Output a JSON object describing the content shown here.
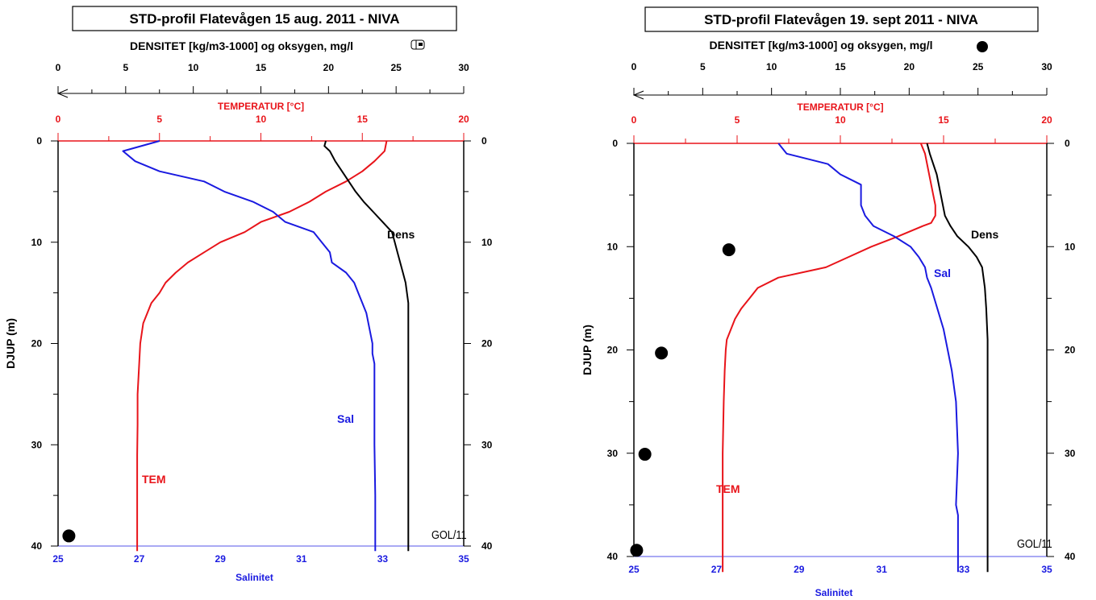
{
  "chart_data": [
    {
      "type": "line",
      "title": "STD-profil Flatevågen 15 aug. 2011 - NIVA",
      "ylabel": "DJUP (m)",
      "ylim": [
        0,
        40
      ],
      "y_ticks": [
        "0",
        "10",
        "20",
        "30",
        "40"
      ],
      "axes": {
        "density_oxygen": {
          "label": "DENSITET [kg/m3-1000] og oksygen, mg/l",
          "range": [
            0,
            30
          ],
          "ticks": [
            "0",
            "5",
            "10",
            "15",
            "20",
            "25",
            "30"
          ]
        },
        "temperature": {
          "label": "TEMPERATUR [°C]",
          "range": [
            0,
            20
          ],
          "ticks": [
            "0",
            "5",
            "10",
            "15",
            "20"
          ]
        },
        "salinity": {
          "label": "Salinitet",
          "range": [
            25,
            35
          ],
          "ticks": [
            "25",
            "27",
            "29",
            "31",
            "33",
            "35"
          ]
        }
      },
      "legend_symbol": "mailbox-icon",
      "series": [
        {
          "name": "TEM",
          "axis": "temperature",
          "color": "#e8141a",
          "x": [
            16.2,
            16.1,
            15.6,
            15.0,
            14.2,
            13.2,
            12.4,
            11.4,
            10.0,
            9.2,
            8.0,
            7.2,
            6.4,
            5.8,
            5.3,
            5.0,
            4.6,
            4.2,
            4.05,
            4.0,
            3.92,
            3.92,
            3.9,
            3.9,
            3.9
          ],
          "y": [
            0,
            1,
            2,
            3,
            4,
            5,
            6,
            7,
            8,
            9,
            10,
            11,
            12,
            13,
            14,
            15,
            16,
            18,
            20,
            22,
            25,
            28,
            31,
            35,
            40.5
          ]
        },
        {
          "name": "Sal",
          "axis": "salinity",
          "color": "#1a1ae0",
          "x": [
            27.5,
            26.6,
            26.9,
            27.5,
            28.6,
            29.1,
            29.8,
            30.3,
            30.6,
            31.3,
            31.5,
            31.7,
            31.75,
            32.1,
            32.3,
            32.4,
            32.5,
            32.6,
            32.65,
            32.7,
            32.75,
            32.75,
            32.8,
            32.8,
            32.8,
            32.82,
            32.82
          ],
          "y": [
            0,
            1,
            2,
            3,
            4,
            5,
            6,
            7,
            8,
            9,
            10,
            11,
            12,
            13,
            14,
            15,
            16,
            17,
            18,
            19,
            20,
            21,
            22,
            25,
            30,
            35,
            40.5
          ]
        },
        {
          "name": "Dens",
          "axis": "density_oxygen",
          "color": "#000000",
          "x": [
            19.8,
            19.7,
            20.1,
            20.5,
            21.0,
            21.5,
            22.0,
            22.6,
            23.3,
            24.0,
            24.7,
            24.9,
            25.1,
            25.3,
            25.5,
            25.7,
            25.8,
            25.9,
            25.9,
            25.9,
            25.9,
            25.9
          ],
          "y": [
            0,
            0.5,
            1,
            2,
            3,
            4,
            5,
            6,
            7,
            8,
            9,
            10,
            11,
            12,
            13,
            14,
            15,
            16,
            18,
            25,
            35,
            40.5
          ]
        },
        {
          "name": "Oksygen",
          "axis": "density_oxygen",
          "marker": "circle",
          "color": "#000000",
          "x": [
            0.8
          ],
          "y": [
            39
          ]
        }
      ],
      "annotations": [
        "Dens",
        "Sal",
        "TEM",
        "GOL/11"
      ]
    },
    {
      "type": "line",
      "title": "STD-profil Flatevågen 19. sept 2011 - NIVA",
      "ylabel": "DJUP (m)",
      "ylim": [
        0,
        40
      ],
      "y_ticks": [
        "0",
        "10",
        "20",
        "30",
        "40"
      ],
      "axes": {
        "density_oxygen": {
          "label": "DENSITET [kg/m3-1000] og oksygen, mg/l",
          "range": [
            0,
            30
          ],
          "ticks": [
            "0",
            "5",
            "10",
            "15",
            "20",
            "25",
            "30"
          ]
        },
        "temperature": {
          "label": "TEMPERATUR [°C]",
          "range": [
            0,
            20
          ],
          "ticks": [
            "0",
            "5",
            "10",
            "15",
            "20"
          ]
        },
        "salinity": {
          "label": "Salinitet",
          "range": [
            25,
            35
          ],
          "ticks": [
            "25",
            "27",
            "29",
            "31",
            "33",
            "35"
          ]
        }
      },
      "legend_symbol": "filled-circle-icon",
      "series": [
        {
          "name": "TEM",
          "axis": "temperature",
          "color": "#e8141a",
          "x": [
            13.9,
            14.1,
            14.3,
            14.5,
            14.6,
            14.6,
            14.4,
            14.0,
            12.8,
            11.5,
            10.4,
            9.3,
            7.0,
            6.0,
            5.6,
            5.2,
            4.9,
            4.7,
            4.5,
            4.45,
            4.4,
            4.35,
            4.3,
            4.3,
            4.3
          ],
          "y": [
            0,
            1,
            3,
            5,
            6,
            7,
            7.7,
            8,
            9,
            10,
            11,
            12,
            13,
            14,
            15,
            16,
            17,
            18,
            19,
            20,
            22,
            25,
            30,
            35,
            41.5
          ]
        },
        {
          "name": "Sal",
          "axis": "salinity",
          "color": "#1a1ae0",
          "x": [
            28.5,
            28.7,
            29.7,
            30.0,
            30.5,
            30.5,
            30.6,
            30.8,
            31.3,
            31.7,
            31.9,
            32.05,
            32.1,
            32.2,
            32.35,
            32.5,
            32.6,
            32.7,
            32.8,
            32.82,
            32.85,
            32.8,
            32.85,
            32.85,
            32.85
          ],
          "y": [
            0,
            1,
            2,
            3,
            4,
            6,
            7,
            8,
            9,
            10,
            11,
            12,
            13,
            14,
            16,
            18,
            20,
            22,
            25,
            27,
            30,
            35,
            36,
            38,
            41.5
          ]
        },
        {
          "name": "Dens",
          "axis": "density_oxygen",
          "color": "#000000",
          "x": [
            21.3,
            21.5,
            22.0,
            22.3,
            22.6,
            23.0,
            23.5,
            24.3,
            24.9,
            25.3,
            25.5,
            25.6,
            25.7,
            25.7,
            25.7
          ],
          "y": [
            0,
            1,
            3,
            5,
            7,
            8,
            9,
            10,
            11,
            12,
            14,
            16,
            19,
            30,
            41.5
          ]
        },
        {
          "name": "Oksygen",
          "axis": "density_oxygen",
          "marker": "circle",
          "color": "#000000",
          "x": [
            6.9,
            2.0,
            0.8,
            0.2
          ],
          "y": [
            10.3,
            20.3,
            30.1,
            39.4
          ]
        }
      ],
      "annotations": [
        "Dens",
        "Sal",
        "TEM",
        "GOL/11"
      ]
    }
  ]
}
